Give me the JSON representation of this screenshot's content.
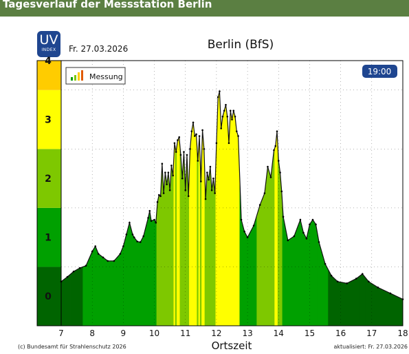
{
  "header": {
    "title": "Tagesverlauf der Messstation Berlin"
  },
  "logo": {
    "uv": "UV",
    "index": "INDEX"
  },
  "date_label": "Fr. 27.03.2026",
  "time_badge": "19:00",
  "footer": {
    "credit": "(c) Bundesamt für Strahlenschutz 2026",
    "updated": "aktualisiert: Fr. 27.03.2026"
  },
  "colors": {
    "uv0": "#006400",
    "uv1": "#00a000",
    "uv2": "#7ec800",
    "uv3": "#ffff00",
    "uv4": "#ffcc00",
    "header_bg": "#5b7f42",
    "badge_bg": "#1f4690"
  },
  "chart_data": {
    "type": "area",
    "title": "Berlin (BfS)",
    "xlabel": "Ortszeit",
    "ylabel": "",
    "xlim": [
      7,
      18
    ],
    "ylim": [
      -0.5,
      4.0
    ],
    "x_ticks": [
      7,
      8,
      9,
      10,
      11,
      12,
      13,
      14,
      15,
      16,
      17,
      18
    ],
    "y_ticks": [
      0,
      1,
      2,
      3,
      4
    ],
    "legend": {
      "position": "top-left",
      "entries": [
        "Messung"
      ]
    },
    "grid": true,
    "series": [
      {
        "name": "Messung",
        "x": [
          7.0,
          7.2,
          7.4,
          7.6,
          7.8,
          8.0,
          8.1,
          8.2,
          8.35,
          8.5,
          8.7,
          8.9,
          9.0,
          9.1,
          9.2,
          9.3,
          9.35,
          9.45,
          9.55,
          9.65,
          9.8,
          9.85,
          9.9,
          10.0,
          10.05,
          10.1,
          10.15,
          10.2,
          10.25,
          10.3,
          10.35,
          10.4,
          10.45,
          10.5,
          10.55,
          10.6,
          10.65,
          10.7,
          10.75,
          10.8,
          10.85,
          10.9,
          10.95,
          11.0,
          11.05,
          11.1,
          11.15,
          11.2,
          11.25,
          11.3,
          11.35,
          11.4,
          11.45,
          11.5,
          11.55,
          11.6,
          11.65,
          11.7,
          11.75,
          11.8,
          11.85,
          11.9,
          11.95,
          12.0,
          12.05,
          12.1,
          12.15,
          12.2,
          12.25,
          12.3,
          12.35,
          12.4,
          12.45,
          12.5,
          12.55,
          12.6,
          12.65,
          12.7,
          12.8,
          12.9,
          13.0,
          13.2,
          13.4,
          13.55,
          13.65,
          13.75,
          13.85,
          13.9,
          13.95,
          14.0,
          14.05,
          14.1,
          14.15,
          14.3,
          14.5,
          14.7,
          14.8,
          14.9,
          15.0,
          15.1,
          15.2,
          15.3,
          15.5,
          15.7,
          15.9,
          16.2,
          16.5,
          16.7,
          16.9,
          17.2,
          17.6,
          18.0
        ],
        "y": [
          0.25,
          0.33,
          0.42,
          0.48,
          0.52,
          0.76,
          0.85,
          0.72,
          0.66,
          0.6,
          0.6,
          0.72,
          0.85,
          1.05,
          1.25,
          1.05,
          1.0,
          0.93,
          0.92,
          1.02,
          1.33,
          1.45,
          1.28,
          1.3,
          1.25,
          1.6,
          1.72,
          1.7,
          2.25,
          1.75,
          2.1,
          1.9,
          2.1,
          1.8,
          2.22,
          2.05,
          2.6,
          2.45,
          2.65,
          2.7,
          2.4,
          2.0,
          2.45,
          1.8,
          2.4,
          1.7,
          2.5,
          2.8,
          2.95,
          2.72,
          2.75,
          2.3,
          2.72,
          1.95,
          2.82,
          2.5,
          1.65,
          2.1,
          1.98,
          2.2,
          1.8,
          2.0,
          1.75,
          2.6,
          3.38,
          3.48,
          2.85,
          3.05,
          3.15,
          3.25,
          3.05,
          2.6,
          3.15,
          3.0,
          3.15,
          3.05,
          2.8,
          2.72,
          1.3,
          1.1,
          1.0,
          1.2,
          1.55,
          1.75,
          2.2,
          2.02,
          2.48,
          2.55,
          2.8,
          2.3,
          2.1,
          1.78,
          1.35,
          0.95,
          1.02,
          1.3,
          1.08,
          0.98,
          1.22,
          1.3,
          1.22,
          0.92,
          0.55,
          0.35,
          0.25,
          0.22,
          0.3,
          0.38,
          0.25,
          0.15,
          0.05,
          -0.05
        ]
      }
    ]
  }
}
